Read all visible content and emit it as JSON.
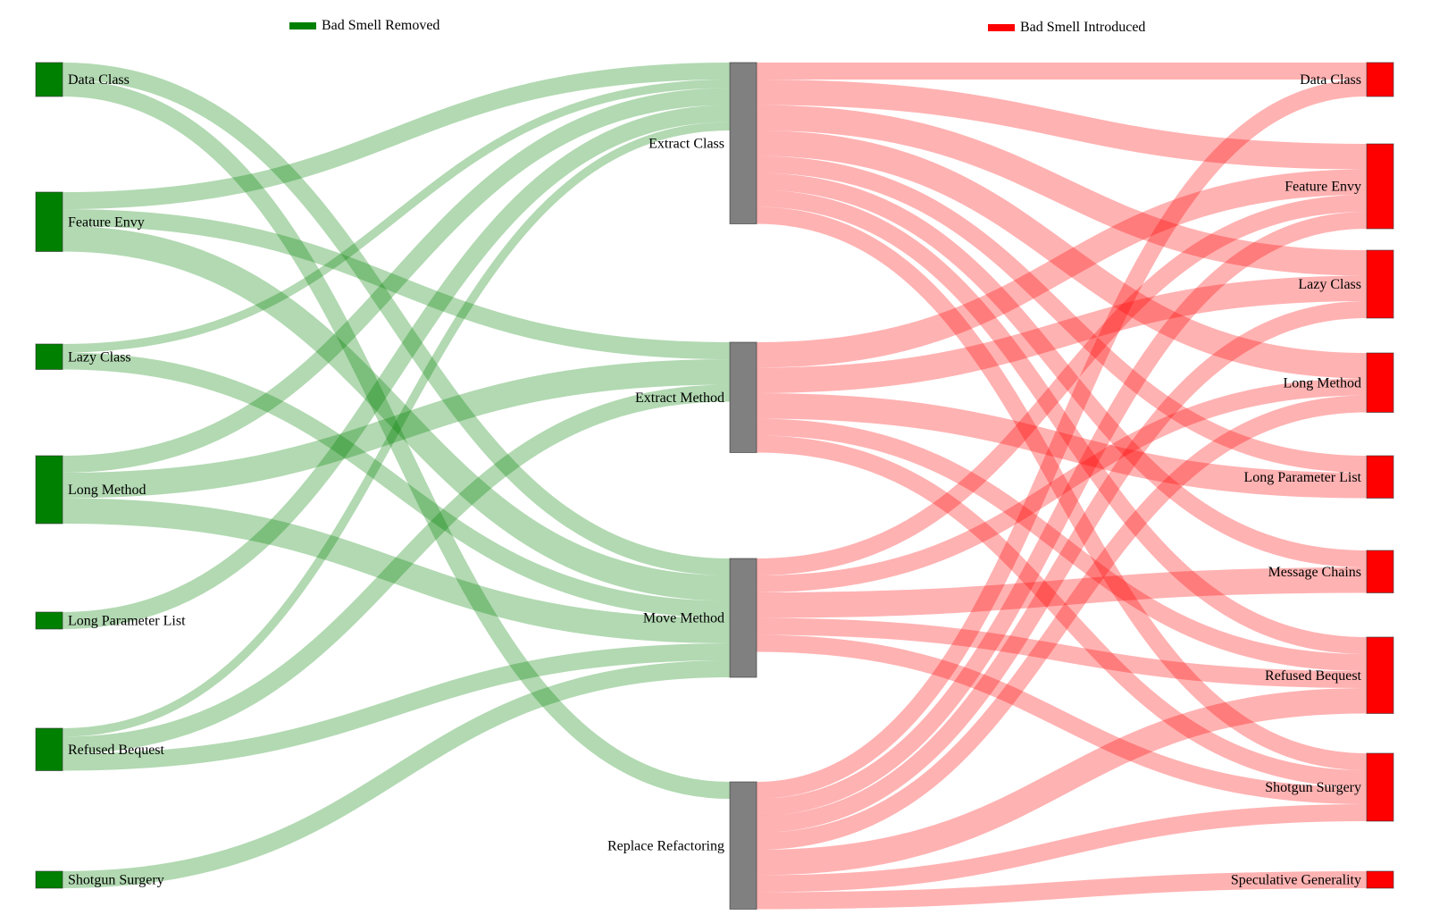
{
  "chart_data": {
    "type": "sankey",
    "legend": [
      {
        "key": "removed",
        "label": "Bad Smell Removed",
        "color": "#008000"
      },
      {
        "key": "introduced",
        "label": "Bad Smell Introduced",
        "color": "#ff0000"
      }
    ],
    "colors": {
      "removed_node": "#008000",
      "introduced_node": "#ff0000",
      "refactoring_node": "#808080",
      "removed_link": "#b2d8b2",
      "introduced_link": "#ffb3b3"
    },
    "left_nodes": [
      "Data Class",
      "Feature Envy",
      "Lazy Class",
      "Long Method",
      "Long Parameter List",
      "Refused Bequest",
      "Shotgun Surgery"
    ],
    "middle_nodes": [
      "Extract Class",
      "Extract Method",
      "Move Method",
      "Replace Refactoring"
    ],
    "right_nodes": [
      "Data Class",
      "Feature Envy",
      "Lazy Class",
      "Long Method",
      "Long Parameter List",
      "Message Chains",
      "Refused Bequest",
      "Shotgun Surgery",
      "Speculative Generality"
    ],
    "removed_links": [
      {
        "source": "Data Class",
        "target": "Move Method",
        "value": 1
      },
      {
        "source": "Data Class",
        "target": "Replace Refactoring",
        "value": 1
      },
      {
        "source": "Feature Envy",
        "target": "Extract Class",
        "value": 1
      },
      {
        "source": "Feature Envy",
        "target": "Extract Method",
        "value": 1
      },
      {
        "source": "Feature Envy",
        "target": "Move Method",
        "value": 1.5
      },
      {
        "source": "Lazy Class",
        "target": "Extract Class",
        "value": 0.5
      },
      {
        "source": "Lazy Class",
        "target": "Move Method",
        "value": 1
      },
      {
        "source": "Long Method",
        "target": "Extract Class",
        "value": 1
      },
      {
        "source": "Long Method",
        "target": "Extract Method",
        "value": 1.5
      },
      {
        "source": "Long Method",
        "target": "Move Method",
        "value": 1.5
      },
      {
        "source": "Long Parameter List",
        "target": "Extract Class",
        "value": 1
      },
      {
        "source": "Refused Bequest",
        "target": "Extract Class",
        "value": 0.5
      },
      {
        "source": "Refused Bequest",
        "target": "Extract Method",
        "value": 1
      },
      {
        "source": "Refused Bequest",
        "target": "Move Method",
        "value": 1
      },
      {
        "source": "Shotgun Surgery",
        "target": "Move Method",
        "value": 1
      }
    ],
    "introduced_links": [
      {
        "source": "Extract Class",
        "target": "Data Class",
        "value": 1
      },
      {
        "source": "Extract Class",
        "target": "Feature Envy",
        "value": 1.5
      },
      {
        "source": "Extract Class",
        "target": "Lazy Class",
        "value": 1.5
      },
      {
        "source": "Extract Class",
        "target": "Long Method",
        "value": 1.5
      },
      {
        "source": "Extract Class",
        "target": "Long Parameter List",
        "value": 1
      },
      {
        "source": "Extract Class",
        "target": "Message Chains",
        "value": 1
      },
      {
        "source": "Extract Class",
        "target": "Refused Bequest",
        "value": 1
      },
      {
        "source": "Extract Class",
        "target": "Shotgun Surgery",
        "value": 1
      },
      {
        "source": "Extract Method",
        "target": "Feature Envy",
        "value": 1.5
      },
      {
        "source": "Extract Method",
        "target": "Lazy Class",
        "value": 1.5
      },
      {
        "source": "Extract Method",
        "target": "Long Parameter List",
        "value": 1.5
      },
      {
        "source": "Extract Method",
        "target": "Refused Bequest",
        "value": 1
      },
      {
        "source": "Extract Method",
        "target": "Shotgun Surgery",
        "value": 1
      },
      {
        "source": "Move Method",
        "target": "Feature Envy",
        "value": 1
      },
      {
        "source": "Move Method",
        "target": "Long Method",
        "value": 1
      },
      {
        "source": "Move Method",
        "target": "Message Chains",
        "value": 1.5
      },
      {
        "source": "Move Method",
        "target": "Refused Bequest",
        "value": 1
      },
      {
        "source": "Move Method",
        "target": "Shotgun Surgery",
        "value": 1
      },
      {
        "source": "Replace Refactoring",
        "target": "Data Class",
        "value": 1
      },
      {
        "source": "Replace Refactoring",
        "target": "Feature Envy",
        "value": 1
      },
      {
        "source": "Replace Refactoring",
        "target": "Lazy Class",
        "value": 1
      },
      {
        "source": "Replace Refactoring",
        "target": "Long Method",
        "value": 1
      },
      {
        "source": "Replace Refactoring",
        "target": "Refused Bequest",
        "value": 1.5
      },
      {
        "source": "Replace Refactoring",
        "target": "Shotgun Surgery",
        "value": 1
      },
      {
        "source": "Replace Refactoring",
        "target": "Speculative Generality",
        "value": 1
      }
    ]
  }
}
